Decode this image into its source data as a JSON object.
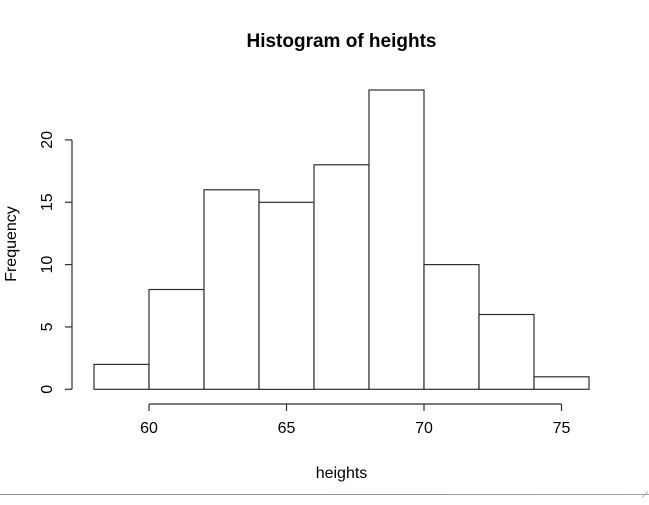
{
  "window": {
    "bottom_edge_color": "#9a9a9a"
  },
  "chart_data": {
    "type": "bar",
    "subtype": "histogram",
    "title": "Histogram of heights",
    "xlabel": "heights",
    "ylabel": "Frequency",
    "bin_edges": [
      58,
      60,
      62,
      64,
      66,
      68,
      70,
      72,
      74,
      76
    ],
    "counts": [
      2,
      8,
      16,
      15,
      18,
      24,
      10,
      6,
      1
    ],
    "x_ticks": [
      60,
      65,
      70,
      75
    ],
    "x_tick_labels": [
      "60",
      "65",
      "70",
      "75"
    ],
    "y_ticks": [
      0,
      5,
      10,
      15,
      20
    ],
    "y_tick_labels": [
      "0",
      "5",
      "10",
      "15",
      "20"
    ],
    "xlim": [
      58,
      76
    ],
    "ylim": [
      0,
      24
    ],
    "grid": false,
    "legend": null,
    "bar_fill": "#ffffff",
    "bar_stroke": "#2e2e2e",
    "axis_color": "#2e2e2e",
    "text_color": "#000000",
    "background": "#ffffff"
  }
}
